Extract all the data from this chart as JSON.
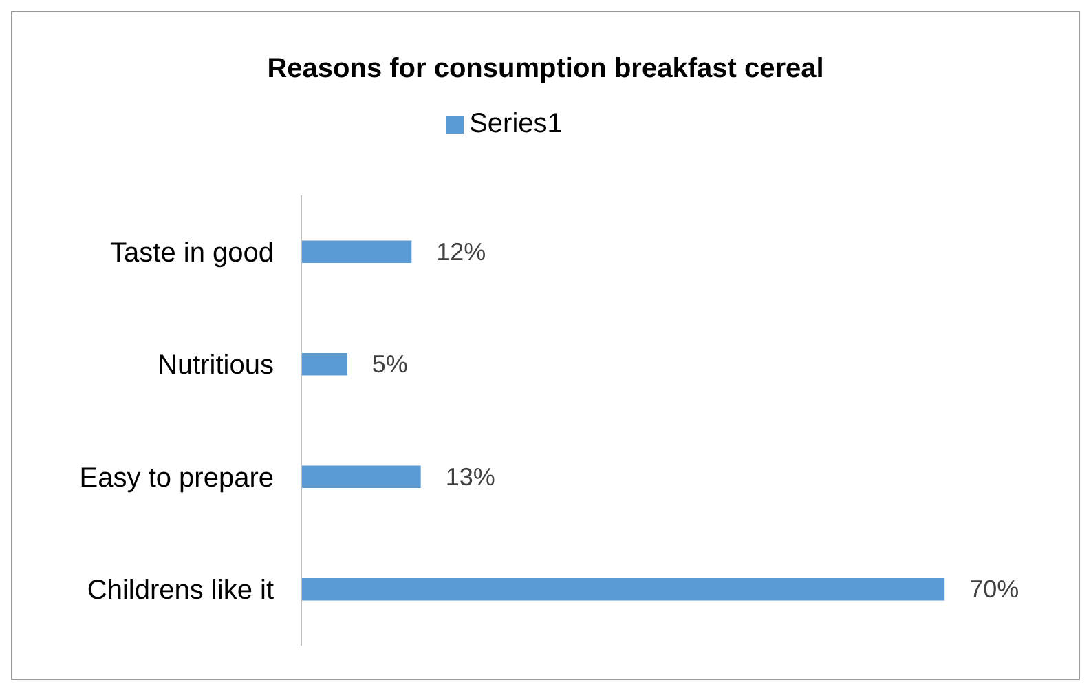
{
  "chart_data": {
    "type": "bar",
    "orientation": "horizontal",
    "title": "Reasons for consumption breakfast cereal",
    "categories": [
      "Taste in good",
      "Nutritious",
      "Easy to prepare",
      "Childrens like it"
    ],
    "series": [
      {
        "name": "Series1",
        "color": "#5b9bd5",
        "values": [
          12,
          5,
          13,
          70
        ],
        "value_labels": [
          "12%",
          "5%",
          "13%",
          "70%"
        ]
      }
    ],
    "legend": "top"
  }
}
